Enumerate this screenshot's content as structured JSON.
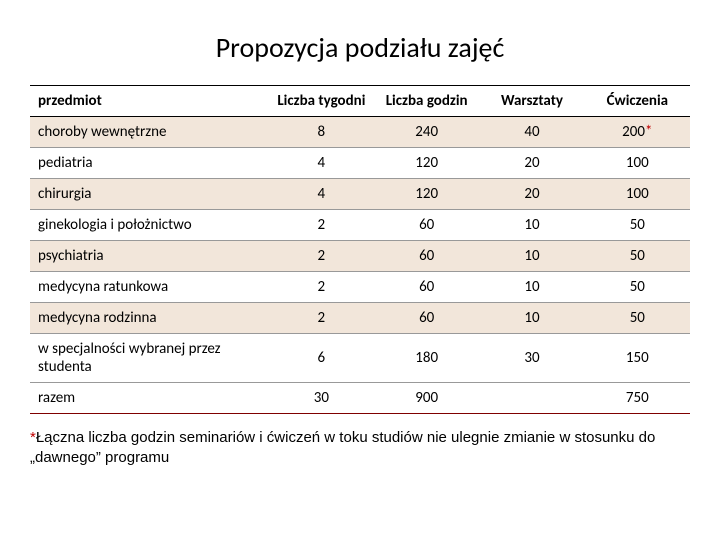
{
  "title": "Propozycja podziału zajęć",
  "table": {
    "headers": {
      "subject": "przedmiot",
      "weeks": "Liczba tygodni",
      "hours": "Liczba godzin",
      "workshops": "Warsztaty",
      "exercises": "Ćwiczenia"
    },
    "rows": [
      {
        "subject": "choroby wewnętrzne",
        "weeks": "8",
        "hours": "240",
        "workshops": "40",
        "exercises": "200",
        "star": true
      },
      {
        "subject": "pediatria",
        "weeks": "4",
        "hours": "120",
        "workshops": "20",
        "exercises": "100"
      },
      {
        "subject": "chirurgia",
        "weeks": "4",
        "hours": "120",
        "workshops": "20",
        "exercises": "100"
      },
      {
        "subject": "ginekologia i położnictwo",
        "weeks": "2",
        "hours": "60",
        "workshops": "10",
        "exercises": "50"
      },
      {
        "subject": "psychiatria",
        "weeks": "2",
        "hours": "60",
        "workshops": "10",
        "exercises": "50"
      },
      {
        "subject": "medycyna ratunkowa",
        "weeks": "2",
        "hours": "60",
        "workshops": "10",
        "exercises": "50"
      },
      {
        "subject": "medycyna rodzinna",
        "weeks": "2",
        "hours": "60",
        "workshops": "10",
        "exercises": "50"
      },
      {
        "subject": "w specjalności wybranej przez studenta",
        "weeks": "6",
        "hours": "180",
        "workshops": "30",
        "exercises": "150"
      }
    ],
    "total": {
      "label": "razem",
      "weeks": "30",
      "hours": "900",
      "workshops": "",
      "exercises": "750"
    }
  },
  "footnote": {
    "mark": "*",
    "text": "Łączna liczba godzin seminariów i ćwiczeń w toku studiów nie ulegnie zmianie w stosunku do „dawnego” programu"
  },
  "colors": {
    "odd_row_bg": "#f2e6da",
    "even_row_bg": "#ffffff",
    "border": "#000000",
    "row_border": "#999999",
    "bottom_rule": "#7f0000",
    "asterisk": "#c00000"
  }
}
